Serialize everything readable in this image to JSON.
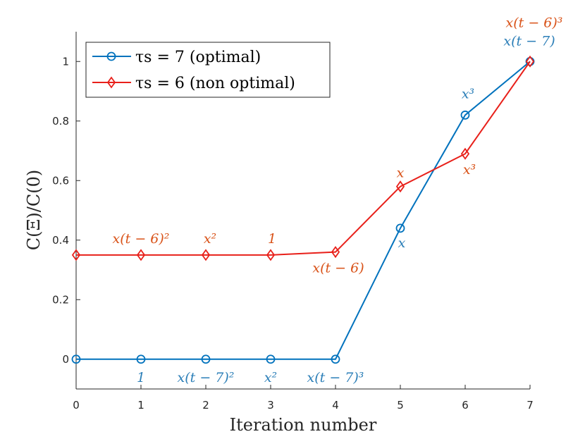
{
  "chart_data": {
    "type": "line",
    "xlabel": "Iteration number",
    "ylabel": "C(Ξ)/C(0)",
    "xlim": [
      0,
      7
    ],
    "ylim": [
      -0.1,
      1.1
    ],
    "x_ticks": [
      "0",
      "1",
      "2",
      "3",
      "4",
      "5",
      "6",
      "7"
    ],
    "y_ticks": [
      "0",
      "0.2",
      "0.4",
      "0.6",
      "0.8",
      "1"
    ],
    "legend_position": "top-left",
    "series": [
      {
        "name": "τs = 7 (optimal)",
        "color": "#0072BD",
        "marker": "circle",
        "x": [
          0,
          1,
          2,
          3,
          4,
          5,
          6,
          7
        ],
        "y": [
          0,
          0,
          0,
          0,
          0,
          0.44,
          0.82,
          1.0
        ],
        "labels": [
          "",
          "1",
          "x(t − 7)²",
          "x²",
          "x(t − 7)³",
          "x",
          "x³",
          "x(t − 7)"
        ]
      },
      {
        "name": "τs = 6 (non optimal)",
        "color": "#E8201A",
        "marker": "diamond",
        "x": [
          0,
          1,
          2,
          3,
          4,
          5,
          6,
          7
        ],
        "y": [
          0.35,
          0.35,
          0.35,
          0.35,
          0.36,
          0.58,
          0.69,
          1.0
        ],
        "labels": [
          "",
          "x(t − 6)²",
          "x²",
          "1",
          "x(t − 6)",
          "x",
          "x³",
          "x(t − 6)³"
        ]
      }
    ]
  },
  "colors": {
    "label_blue": "#2C7FB8",
    "label_orange": "#D95319"
  }
}
